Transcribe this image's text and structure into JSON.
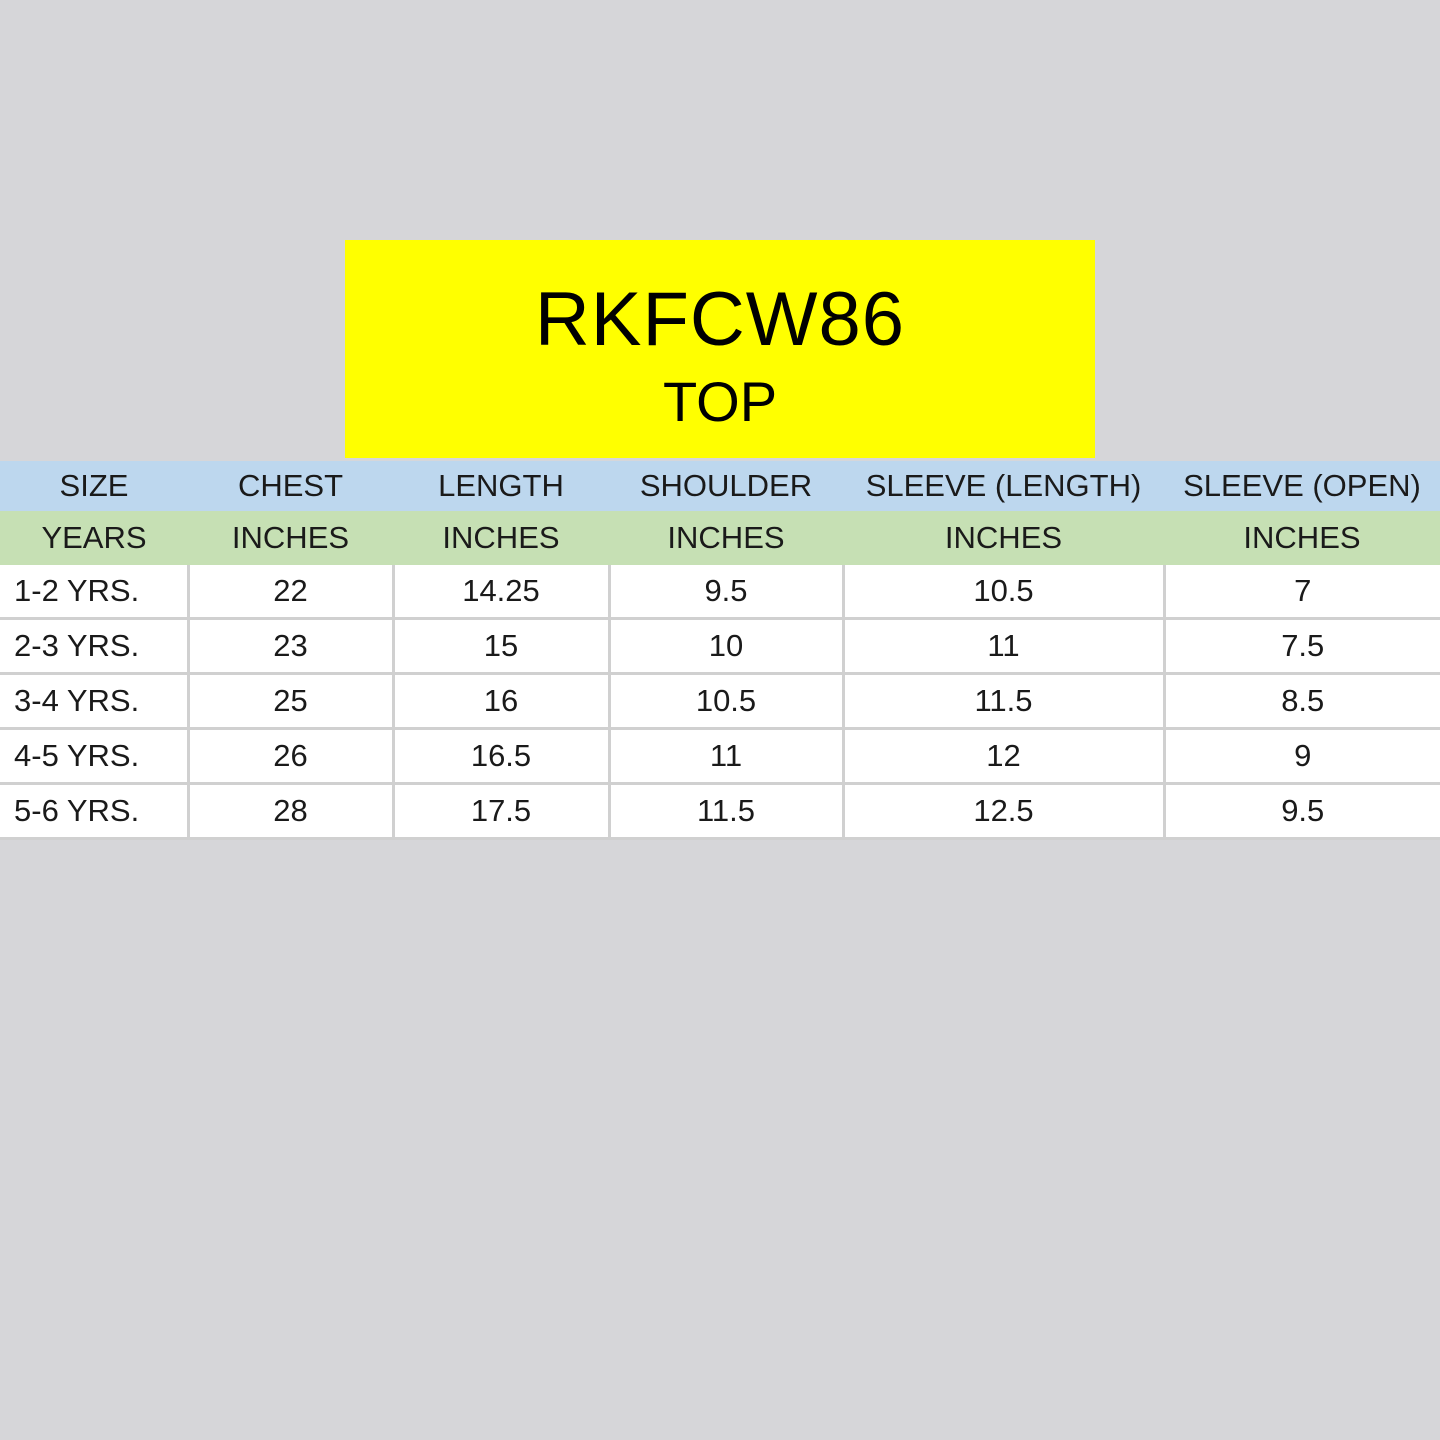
{
  "title": {
    "code": "RKFCW86",
    "subtitle": "TOP"
  },
  "colors": {
    "background": "#d6d6d9",
    "title_box": "#ffff00",
    "header_row": "#bdd7ee",
    "unit_row": "#c6e0b4",
    "data_row": "#ffffff"
  },
  "table": {
    "headers": [
      "SIZE",
      "CHEST",
      "LENGTH",
      "SHOULDER",
      "SLEEVE (LENGTH)",
      "SLEEVE (OPEN)"
    ],
    "units": [
      "YEARS",
      "INCHES",
      "INCHES",
      "INCHES",
      "INCHES",
      "INCHES"
    ],
    "rows": [
      [
        "1-2 YRS.",
        "22",
        "14.25",
        "9.5",
        "10.5",
        "7"
      ],
      [
        "2-3 YRS.",
        "23",
        "15",
        "10",
        "11",
        "7.5"
      ],
      [
        "3-4 YRS.",
        "25",
        "16",
        "10.5",
        "11.5",
        "8.5"
      ],
      [
        "4-5 YRS.",
        "26",
        "16.5",
        "11",
        "12",
        "9"
      ],
      [
        "5-6 YRS.",
        "28",
        "17.5",
        "11.5",
        "12.5",
        "9.5"
      ]
    ]
  }
}
